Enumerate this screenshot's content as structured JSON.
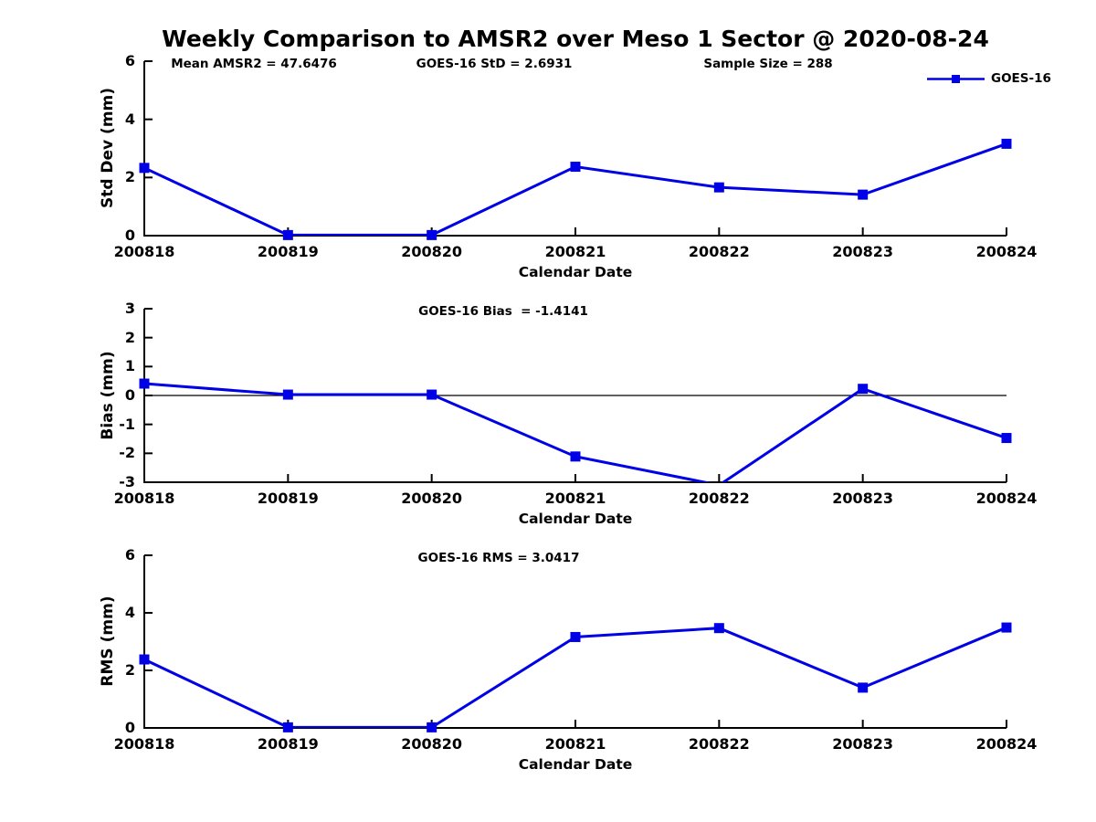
{
  "figure": {
    "title": "Weekly Comparison to AMSR2 over Meso 1 Sector @ 2020-08-24",
    "background": "#ffffff",
    "text_color": "#000000",
    "line_color": "#0000e6"
  },
  "legend": {
    "label": "GOES-16"
  },
  "chart_data": [
    {
      "type": "line",
      "categories": [
        "200818",
        "200819",
        "200820",
        "200821",
        "200822",
        "200823",
        "200824"
      ],
      "xlabel": "Calendar Date",
      "ylabel": "Std Dev (mm)",
      "ylim": [
        0,
        6
      ],
      "yticks": [
        0,
        2,
        4,
        6
      ],
      "grid": false,
      "zero_line": false,
      "legend_entries": [
        "GOES-16"
      ],
      "legend_position": "top-right",
      "annotations": [
        {
          "text": "Mean AMSR2 = 47.6476"
        },
        {
          "text": "GOES-16 StD = 2.6931"
        },
        {
          "text": "Sample Size = 288"
        }
      ],
      "series": [
        {
          "name": "GOES-16",
          "color": "#0000e6",
          "marker": "square",
          "values": [
            2.33,
            0.02,
            0.02,
            2.37,
            1.66,
            1.41,
            3.16
          ]
        }
      ]
    },
    {
      "type": "line",
      "categories": [
        "200818",
        "200819",
        "200820",
        "200821",
        "200822",
        "200823",
        "200824"
      ],
      "xlabel": "Calendar Date",
      "ylabel": "Bias (mm)",
      "ylim": [
        -3,
        3
      ],
      "yticks": [
        -3,
        -2,
        -1,
        0,
        1,
        2,
        3
      ],
      "grid": false,
      "zero_line": true,
      "legend_entries": [],
      "annotations": [
        {
          "text": "GOES-16 Bias  = -1.4141"
        }
      ],
      "series": [
        {
          "name": "GOES-16",
          "color": "#0000e6",
          "marker": "square",
          "values": [
            0.41,
            0.03,
            0.03,
            -2.11,
            -3.1,
            0.23,
            -1.47
          ]
        }
      ]
    },
    {
      "type": "line",
      "categories": [
        "200818",
        "200819",
        "200820",
        "200821",
        "200822",
        "200823",
        "200824"
      ],
      "xlabel": "Calendar Date",
      "ylabel": "RMS (mm)",
      "ylim": [
        0,
        6
      ],
      "yticks": [
        0,
        2,
        4,
        6
      ],
      "grid": false,
      "zero_line": false,
      "legend_entries": [],
      "annotations": [
        {
          "text": "GOES-16 RMS = 3.0417"
        }
      ],
      "series": [
        {
          "name": "GOES-16",
          "color": "#0000e6",
          "marker": "square",
          "values": [
            2.38,
            0.02,
            0.02,
            3.16,
            3.47,
            1.4,
            3.49
          ]
        }
      ]
    }
  ]
}
